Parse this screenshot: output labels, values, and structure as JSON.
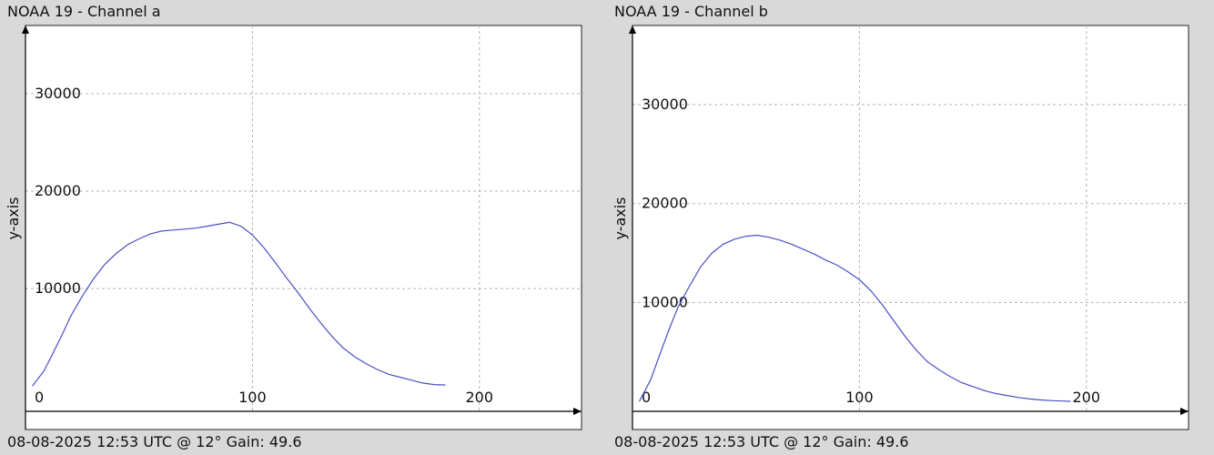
{
  "charts": [
    {
      "title": "NOAA 19 - Channel a",
      "footer": "08-08-2025 12:53 UTC @ 12° Gain: 49.6",
      "chart_data": {
        "type": "line",
        "ylabel": "y-axis",
        "xlabel": "",
        "xlim": [
          0,
          245
        ],
        "ylim": [
          -2600,
          37000
        ],
        "x_ticks": [
          0,
          100,
          200
        ],
        "y_ticks": [
          10000,
          20000,
          30000
        ],
        "grid": true,
        "line_color": "#4a4fc4",
        "series": [
          {
            "x": [
              3,
              8,
              12,
              16,
              20,
              25,
              30,
              35,
              40,
              45,
              50,
              55,
              60,
              65,
              70,
              75,
              80,
              85,
              90,
              95,
              100,
              105,
              110,
              115,
              120,
              125,
              130,
              135,
              140,
              145,
              150,
              155,
              160,
              165,
              170,
              175,
              180,
              185
            ],
            "values": [
              0,
              1500,
              3300,
              5200,
              7200,
              9200,
              11000,
              12500,
              13600,
              14500,
              15100,
              15600,
              15900,
              16000,
              16100,
              16200,
              16400,
              16600,
              16800,
              16400,
              15500,
              14200,
              12700,
              11100,
              9600,
              8000,
              6500,
              5100,
              3900,
              3000,
              2300,
              1700,
              1200,
              900,
              600,
              300,
              150,
              100
            ]
          }
        ]
      }
    },
    {
      "title": "NOAA 19 - Channel b",
      "footer": "08-08-2025 12:53 UTC @ 12° Gain: 49.6",
      "chart_data": {
        "type": "line",
        "ylabel": "y-axis",
        "xlabel": "",
        "xlim": [
          0,
          245
        ],
        "ylim": [
          -1000,
          38000
        ],
        "x_ticks": [
          0,
          100,
          200
        ],
        "y_ticks": [
          10000,
          20000,
          30000
        ],
        "grid": true,
        "line_color": "#4a4fc4",
        "series": [
          {
            "x": [
              3,
              8,
              12,
              16,
              20,
              25,
              30,
              35,
              40,
              45,
              50,
              55,
              60,
              65,
              70,
              75,
              80,
              85,
              90,
              95,
              100,
              105,
              110,
              115,
              120,
              125,
              130,
              135,
              140,
              145,
              150,
              155,
              160,
              165,
              170,
              175,
              180,
              185,
              190,
              193
            ],
            "values": [
              0,
              2200,
              4700,
              7200,
              9500,
              11600,
              13600,
              15000,
              15900,
              16400,
              16700,
              16800,
              16600,
              16300,
              15900,
              15400,
              14900,
              14300,
              13800,
              13100,
              12300,
              11200,
              9800,
              8200,
              6600,
              5200,
              4000,
              3200,
              2500,
              1900,
              1500,
              1100,
              800,
              600,
              400,
              250,
              150,
              80,
              40,
              0
            ]
          }
        ]
      }
    }
  ]
}
